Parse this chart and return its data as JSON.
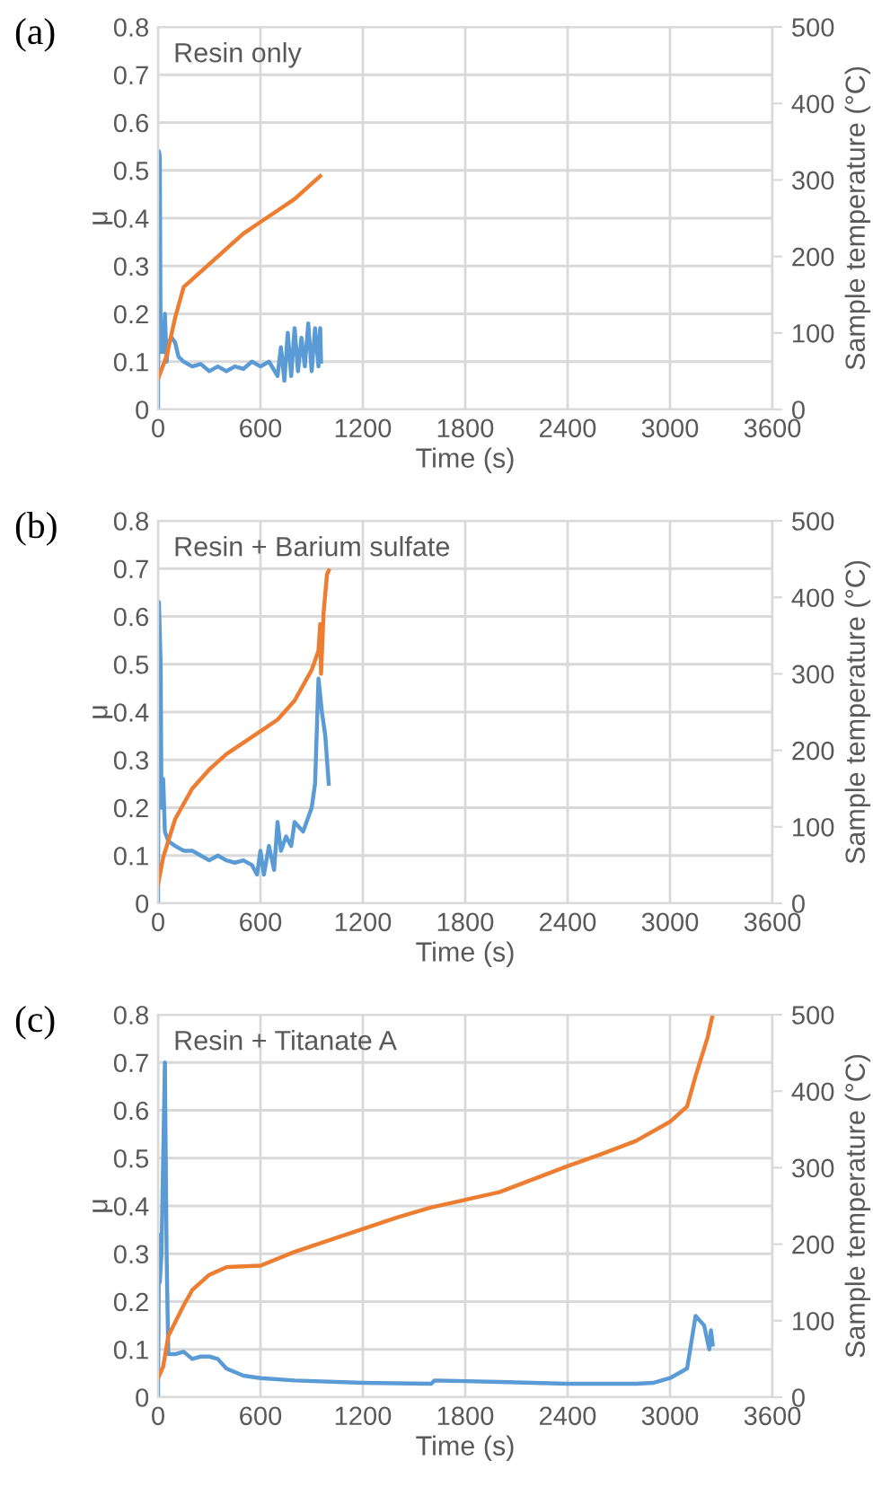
{
  "chart_data": [
    {
      "type": "line",
      "title": "Resin only",
      "xlabel": "Time (s)",
      "ylabel": "μ",
      "y2label": "Sample temperature (°C)",
      "annotations": [
        "(a)"
      ],
      "xlim": [
        0,
        3600
      ],
      "xticks": [
        0,
        600,
        1200,
        1800,
        2400,
        3000,
        3600
      ],
      "ylim": [
        0,
        0.8
      ],
      "yticks": [
        0,
        0.1,
        0.2,
        0.3,
        0.4,
        0.5,
        0.6,
        0.7,
        0.8
      ],
      "y2lim": [
        0,
        500
      ],
      "y2ticks": [
        0,
        100,
        200,
        300,
        400,
        500
      ],
      "grid": true,
      "series": [
        {
          "color": "#5b9bd5",
          "x": [
            0,
            5,
            10,
            15,
            20,
            30,
            40,
            50,
            60,
            80,
            100,
            120,
            150,
            200,
            250,
            300,
            350,
            400,
            450,
            500,
            550,
            600,
            650,
            700,
            720,
            740,
            760,
            780,
            800,
            820,
            840,
            860,
            880,
            900,
            920,
            940,
            950,
            955
          ],
          "values": [
            0,
            0.54,
            0.53,
            0.12,
            0.18,
            0.12,
            0.2,
            0.1,
            0.14,
            0.15,
            0.14,
            0.11,
            0.1,
            0.09,
            0.095,
            0.08,
            0.09,
            0.08,
            0.09,
            0.085,
            0.1,
            0.09,
            0.1,
            0.07,
            0.13,
            0.06,
            0.16,
            0.07,
            0.17,
            0.08,
            0.15,
            0.09,
            0.18,
            0.08,
            0.17,
            0.09,
            0.17,
            0.1
          ]
        },
        {
          "color": "#ed7d31",
          "axis": "y2",
          "x": [
            0,
            50,
            100,
            150,
            200,
            300,
            400,
            500,
            600,
            700,
            800,
            900,
            950
          ],
          "values": [
            40,
            70,
            120,
            160,
            170,
            190,
            210,
            230,
            245,
            260,
            275,
            295,
            305
          ]
        }
      ]
    },
    {
      "type": "line",
      "title": "Resin + Barium sulfate",
      "xlabel": "Time (s)",
      "ylabel": "μ",
      "y2label": "Sample temperature (°C)",
      "annotations": [
        "(b)"
      ],
      "xlim": [
        0,
        3600
      ],
      "xticks": [
        0,
        600,
        1200,
        1800,
        2400,
        3000,
        3600
      ],
      "ylim": [
        0,
        0.8
      ],
      "yticks": [
        0,
        0.1,
        0.2,
        0.3,
        0.4,
        0.5,
        0.6,
        0.7,
        0.8
      ],
      "y2lim": [
        0,
        500
      ],
      "y2ticks": [
        0,
        100,
        200,
        300,
        400,
        500
      ],
      "grid": true,
      "series": [
        {
          "color": "#5b9bd5",
          "x": [
            0,
            5,
            15,
            20,
            30,
            40,
            60,
            100,
            150,
            200,
            250,
            300,
            350,
            400,
            450,
            500,
            550,
            580,
            600,
            620,
            650,
            680,
            700,
            720,
            750,
            780,
            800,
            850,
            900,
            920,
            940,
            960,
            980,
            1000
          ],
          "values": [
            0,
            0.63,
            0.5,
            0.2,
            0.26,
            0.15,
            0.13,
            0.12,
            0.11,
            0.11,
            0.1,
            0.09,
            0.1,
            0.09,
            0.085,
            0.09,
            0.08,
            0.06,
            0.11,
            0.06,
            0.12,
            0.07,
            0.17,
            0.11,
            0.14,
            0.12,
            0.17,
            0.15,
            0.2,
            0.25,
            0.47,
            0.4,
            0.35,
            0.25
          ]
        },
        {
          "color": "#ed7d31",
          "axis": "y2",
          "x": [
            0,
            30,
            100,
            200,
            300,
            400,
            500,
            600,
            700,
            800,
            900,
            940,
            950,
            955,
            970,
            990,
            1000
          ],
          "values": [
            25,
            60,
            110,
            150,
            175,
            195,
            210,
            225,
            240,
            265,
            305,
            330,
            365,
            300,
            380,
            430,
            435
          ]
        }
      ]
    },
    {
      "type": "line",
      "title": "Resin + Titanate A",
      "xlabel": "Time (s)",
      "ylabel": "μ",
      "y2label": "Sample temperature (°C)",
      "annotations": [
        "(c)"
      ],
      "xlim": [
        0,
        3600
      ],
      "xticks": [
        0,
        600,
        1200,
        1800,
        2400,
        3000,
        3600
      ],
      "ylim": [
        0,
        0.8
      ],
      "yticks": [
        0,
        0.1,
        0.2,
        0.3,
        0.4,
        0.5,
        0.6,
        0.7,
        0.8
      ],
      "y2lim": [
        0,
        500
      ],
      "y2ticks": [
        0,
        100,
        200,
        300,
        400,
        500
      ],
      "grid": true,
      "series": [
        {
          "color": "#5b9bd5",
          "x": [
            0,
            5,
            10,
            20,
            40,
            50,
            60,
            100,
            150,
            200,
            250,
            300,
            350,
            400,
            500,
            600,
            800,
            1200,
            1600,
            1620,
            2000,
            2400,
            2800,
            2900,
            3000,
            3100,
            3150,
            3200,
            3230,
            3240,
            3250
          ],
          "values": [
            0,
            0.34,
            0.24,
            0.3,
            0.7,
            0.3,
            0.09,
            0.09,
            0.095,
            0.08,
            0.085,
            0.085,
            0.08,
            0.06,
            0.045,
            0.04,
            0.035,
            0.03,
            0.028,
            0.035,
            0.032,
            0.028,
            0.028,
            0.03,
            0.04,
            0.06,
            0.17,
            0.15,
            0.1,
            0.14,
            0.11
          ]
        },
        {
          "color": "#ed7d31",
          "axis": "y2",
          "x": [
            0,
            30,
            60,
            150,
            200,
            300,
            400,
            600,
            800,
            1000,
            1200,
            1400,
            1600,
            1800,
            2000,
            2200,
            2400,
            2600,
            2800,
            3000,
            3100,
            3150,
            3220,
            3250
          ],
          "values": [
            25,
            40,
            80,
            120,
            140,
            160,
            170,
            172,
            190,
            205,
            220,
            235,
            248,
            258,
            268,
            285,
            302,
            318,
            335,
            360,
            380,
            420,
            470,
            500
          ]
        }
      ]
    }
  ]
}
